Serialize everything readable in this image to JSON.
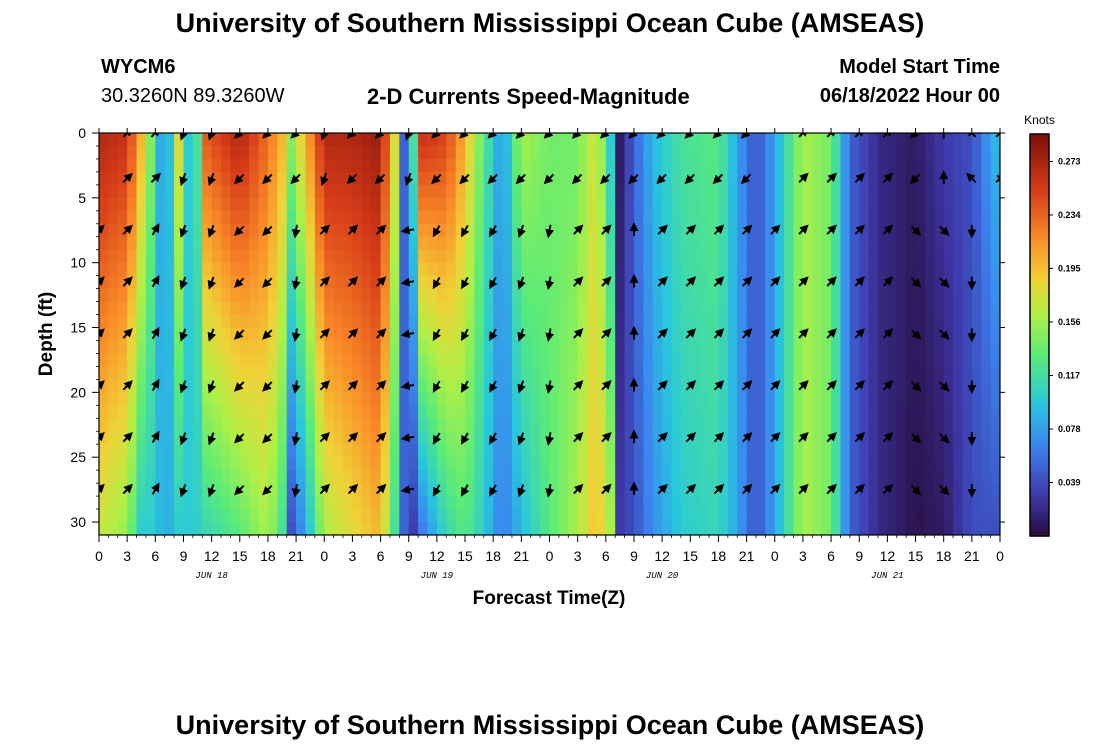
{
  "header": {
    "title": "University of Southern Mississippi Ocean Cube (AMSEAS)",
    "station_id": "WYCM6",
    "station_coords": "30.3260N  89.3260W",
    "subtitle": "2-D Currents Speed-Magnitude",
    "start_label": "Model Start Time",
    "start_value": "06/18/2022 Hour 00"
  },
  "footer": {
    "title": "University of Southern Mississippi Ocean Cube (AMSEAS)"
  },
  "chart_data": {
    "type": "heatmap",
    "title": "2-D Currents Speed-Magnitude",
    "xlabel": "Forecast Time(Z)",
    "ylabel": "Depth (ft)",
    "x_range_hours": [
      0,
      96
    ],
    "y_range_ft": [
      0,
      31
    ],
    "x_tick_hours": [
      0,
      3,
      6,
      9,
      12,
      15,
      18,
      21,
      24,
      27,
      30,
      33,
      36,
      39,
      42,
      45,
      48,
      51,
      54,
      57,
      60,
      63,
      66,
      69,
      72,
      75,
      78,
      81,
      84,
      87,
      90,
      93,
      96
    ],
    "x_tick_labels": [
      "0",
      "3",
      "6",
      "9",
      "12",
      "15",
      "18",
      "21",
      "0",
      "3",
      "6",
      "9",
      "12",
      "15",
      "18",
      "21",
      "0",
      "3",
      "6",
      "9",
      "12",
      "15",
      "18",
      "21",
      "0",
      "3",
      "6",
      "9",
      "12",
      "15",
      "18",
      "21",
      "0"
    ],
    "day_labels": [
      {
        "hour": 12,
        "label": "JUN 18"
      },
      {
        "hour": 36,
        "label": "JUN 19"
      },
      {
        "hour": 60,
        "label": "JUN 20"
      },
      {
        "hour": 84,
        "label": "JUN 21"
      }
    ],
    "y_ticks": [
      0,
      5,
      10,
      15,
      20,
      25,
      30
    ],
    "colorbar": {
      "unit": "Knots",
      "range": [
        0.0,
        0.293
      ],
      "tick_values": [
        0.273,
        0.234,
        0.195,
        0.156,
        0.117,
        0.078,
        0.039
      ],
      "tick_labels": [
        "0.273",
        "0.234",
        "0.195",
        "0.156",
        "0.117",
        "0.078",
        "0.039"
      ]
    },
    "speed_profiles_knots": [
      {
        "hour": 0,
        "surface": 0.27,
        "bottom": 0.17
      },
      {
        "hour": 3,
        "surface": 0.26,
        "bottom": 0.15
      },
      {
        "hour": 4.5,
        "surface": 0.2,
        "bottom": 0.1
      },
      {
        "hour": 6,
        "surface": 0.12,
        "bottom": 0.1
      },
      {
        "hour": 7,
        "surface": 0.05,
        "bottom": 0.08
      },
      {
        "hour": 8.5,
        "surface": 0.18,
        "bottom": 0.1
      },
      {
        "hour": 10,
        "surface": 0.06,
        "bottom": 0.1
      },
      {
        "hour": 11.5,
        "surface": 0.24,
        "bottom": 0.11
      },
      {
        "hour": 15,
        "surface": 0.27,
        "bottom": 0.13
      },
      {
        "hour": 18,
        "surface": 0.23,
        "bottom": 0.16
      },
      {
        "hour": 19.5,
        "surface": 0.2,
        "bottom": 0.12
      },
      {
        "hour": 20.5,
        "surface": 0.15,
        "bottom": 0.04
      },
      {
        "hour": 22,
        "surface": 0.2,
        "bottom": 0.08
      },
      {
        "hour": 24,
        "surface": 0.27,
        "bottom": 0.16
      },
      {
        "hour": 27,
        "surface": 0.27,
        "bottom": 0.18
      },
      {
        "hour": 30,
        "surface": 0.28,
        "bottom": 0.2
      },
      {
        "hour": 31.5,
        "surface": 0.18,
        "bottom": 0.12
      },
      {
        "hour": 32.5,
        "surface": 0.05,
        "bottom": 0.05
      },
      {
        "hour": 33.5,
        "surface": 0.12,
        "bottom": 0.03
      },
      {
        "hour": 34.5,
        "surface": 0.26,
        "bottom": 0.06
      },
      {
        "hour": 37,
        "surface": 0.25,
        "bottom": 0.11
      },
      {
        "hour": 39,
        "surface": 0.2,
        "bottom": 0.13
      },
      {
        "hour": 41,
        "surface": 0.13,
        "bottom": 0.1
      },
      {
        "hour": 43,
        "surface": 0.07,
        "bottom": 0.06
      },
      {
        "hour": 45,
        "surface": 0.16,
        "bottom": 0.09
      },
      {
        "hour": 48,
        "surface": 0.14,
        "bottom": 0.13
      },
      {
        "hour": 51,
        "surface": 0.14,
        "bottom": 0.16
      },
      {
        "hour": 53,
        "surface": 0.18,
        "bottom": 0.2
      },
      {
        "hour": 54.5,
        "surface": 0.1,
        "bottom": 0.16
      },
      {
        "hour": 55.5,
        "surface": 0.01,
        "bottom": 0.03
      },
      {
        "hour": 57,
        "surface": 0.05,
        "bottom": 0.04
      },
      {
        "hour": 59,
        "surface": 0.09,
        "bottom": 0.07
      },
      {
        "hour": 62,
        "surface": 0.12,
        "bottom": 0.1
      },
      {
        "hour": 66,
        "surface": 0.13,
        "bottom": 0.11
      },
      {
        "hour": 68,
        "surface": 0.08,
        "bottom": 0.08
      },
      {
        "hour": 70,
        "surface": 0.04,
        "bottom": 0.04
      },
      {
        "hour": 72,
        "surface": 0.08,
        "bottom": 0.08
      },
      {
        "hour": 75,
        "surface": 0.16,
        "bottom": 0.16
      },
      {
        "hour": 78,
        "surface": 0.14,
        "bottom": 0.14
      },
      {
        "hour": 80,
        "surface": 0.05,
        "bottom": 0.05
      },
      {
        "hour": 83,
        "surface": 0.02,
        "bottom": 0.02
      },
      {
        "hour": 87,
        "surface": 0.01,
        "bottom": 0.005
      },
      {
        "hour": 90,
        "surface": 0.03,
        "bottom": 0.01
      },
      {
        "hour": 93,
        "surface": 0.04,
        "bottom": 0.04
      },
      {
        "hour": 96,
        "surface": 0.1,
        "bottom": 0.04
      }
    ],
    "vector_depths_ft": [
      0,
      3.5,
      7.5,
      11.5,
      15.5,
      19.5,
      23.5,
      27.5
    ],
    "vector_hours": [
      0,
      3,
      6,
      9,
      12,
      15,
      18,
      21,
      24,
      27,
      30,
      33,
      36,
      39,
      42,
      45,
      48,
      51,
      54,
      57,
      60,
      63,
      66,
      69,
      72,
      75,
      78,
      81,
      84,
      87,
      90,
      93,
      96
    ],
    "vector_surface_directions_deg": [
      null,
      45,
      45,
      200,
      200,
      225,
      225,
      225,
      200,
      225,
      225,
      200,
      225,
      225,
      225,
      225,
      225,
      225,
      225,
      225,
      225,
      225,
      225,
      225,
      null,
      45,
      45,
      45,
      45,
      225,
      0,
      315,
      45
    ],
    "vector_deep_directions_deg": [
      45,
      45,
      30,
      200,
      200,
      225,
      225,
      190,
      45,
      45,
      45,
      260,
      210,
      210,
      210,
      200,
      190,
      45,
      45,
      0,
      45,
      45,
      45,
      45,
      45,
      45,
      45,
      45,
      45,
      135,
      135,
      180,
      null
    ]
  }
}
